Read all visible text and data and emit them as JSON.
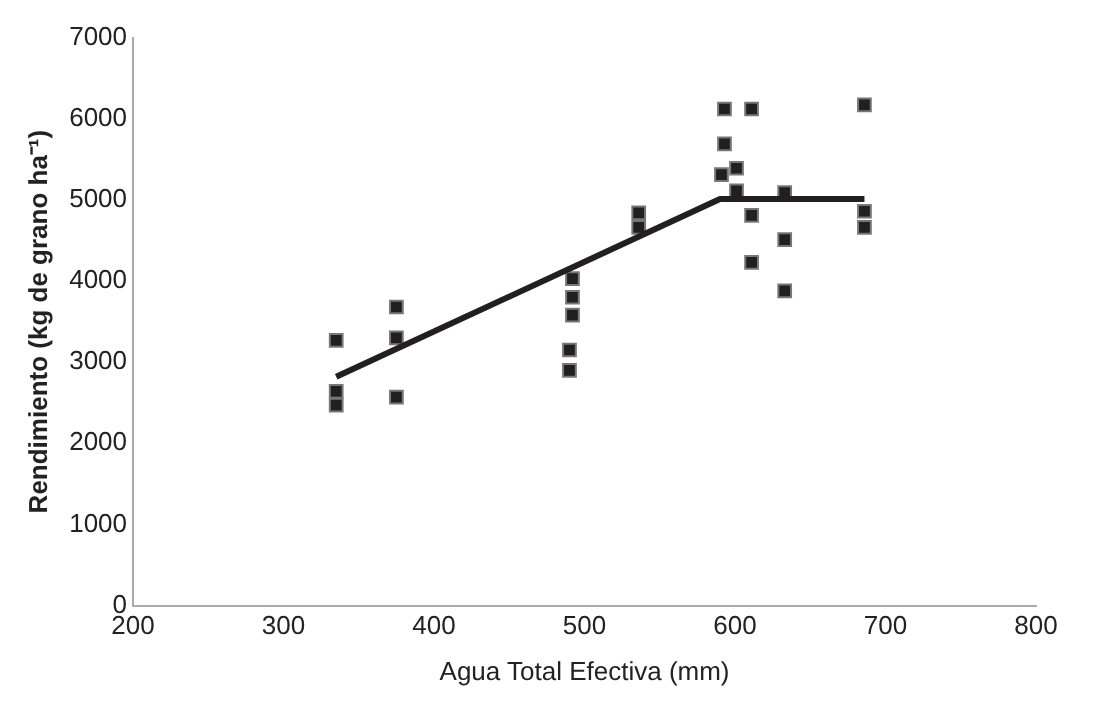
{
  "chart_data": {
    "type": "scatter",
    "xlabel": "Agua Total Efectiva (mm)",
    "ylabel": "Rendimiento (kg de grano ha⁻¹)",
    "xlim": [
      200,
      800
    ],
    "xticks": [
      200,
      300,
      400,
      500,
      600,
      700,
      800
    ],
    "ylim": [
      0,
      7000
    ],
    "yticks": [
      0,
      1000,
      2000,
      3000,
      4000,
      5000,
      6000,
      7000
    ],
    "grid": false,
    "legend": false,
    "marker": "square",
    "series": [
      {
        "color": "#231f20",
        "x": [
          335,
          335,
          335,
          375,
          375,
          375,
          492,
          492,
          492,
          490,
          490,
          536,
          536,
          593,
          591,
          593,
          601,
          601,
          611,
          611,
          611,
          633,
          633,
          633,
          686,
          686,
          686
        ],
        "values": [
          3270,
          2640,
          2470,
          3680,
          3300,
          2570,
          4030,
          3800,
          3580,
          3150,
          2900,
          4840,
          4660,
          6120,
          5310,
          5690,
          5390,
          5110,
          6120,
          4810,
          4230,
          5090,
          4510,
          3880,
          6170,
          4860,
          4660
        ]
      },
      {
        "type": "line",
        "color": "#231f20",
        "marker": "none",
        "x": [
          335,
          590,
          686
        ],
        "values": [
          2820,
          5010,
          5010
        ]
      }
    ]
  }
}
